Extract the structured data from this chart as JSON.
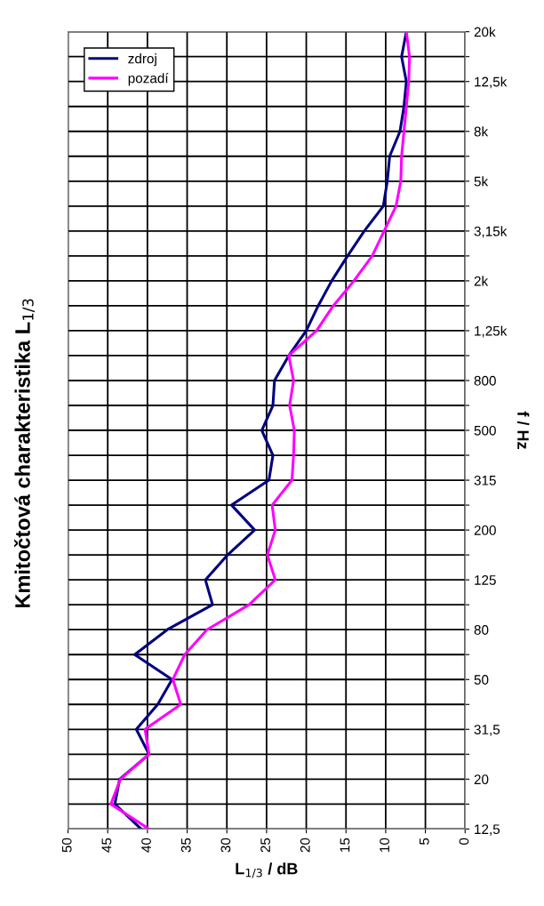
{
  "chart_data": {
    "type": "line",
    "orientation": "horizontal",
    "title": "Kmitočtová charakteristika L$_{1/3}$",
    "xlabel": "L$_{1/3}$ / dB",
    "ylabel": "f / Hz",
    "categories": [
      "20k",
      null,
      "12,5k",
      null,
      "8k",
      null,
      "5k",
      null,
      "3,15k",
      null,
      "2k",
      null,
      "1,25k",
      null,
      "800",
      null,
      "500",
      null,
      "315",
      null,
      "200",
      null,
      "125",
      null,
      "80",
      null,
      "50",
      null,
      "31,5",
      null,
      "20",
      null,
      "12,5"
    ],
    "series": [
      {
        "name": "zdroj",
        "color": "#000080",
        "values": [
          7.4,
          8.0,
          7.4,
          7.7,
          8.2,
          9.5,
          9.8,
          10.3,
          12.7,
          14.8,
          16.8,
          18.5,
          20.0,
          22.2,
          24.0,
          24.2,
          25.6,
          24.2,
          24.7,
          29.4,
          26.5,
          29.9,
          32.7,
          31.8,
          37.5,
          41.6,
          36.9,
          38.7,
          41.4,
          39.8,
          43.5,
          44.1,
          40.8
        ]
      },
      {
        "name": "pozadí",
        "color": "#ff00ff",
        "values": [
          7.4,
          7.0,
          7.1,
          7.4,
          7.7,
          8.0,
          8.1,
          8.7,
          10.2,
          11.7,
          14.0,
          16.6,
          18.7,
          22.2,
          21.6,
          22.1,
          21.5,
          21.6,
          21.8,
          24.3,
          23.9,
          24.9,
          23.9,
          27.2,
          32.5,
          35.3,
          36.8,
          35.8,
          40.3,
          39.8,
          43.4,
          44.6,
          39.8
        ]
      }
    ],
    "xlim": [
      50,
      0
    ],
    "xticks": [
      50,
      45,
      40,
      35,
      30,
      25,
      20,
      15,
      10,
      5,
      0
    ],
    "grid": true,
    "legend": "top left",
    "marker": "none",
    "line_style": "solid"
  }
}
